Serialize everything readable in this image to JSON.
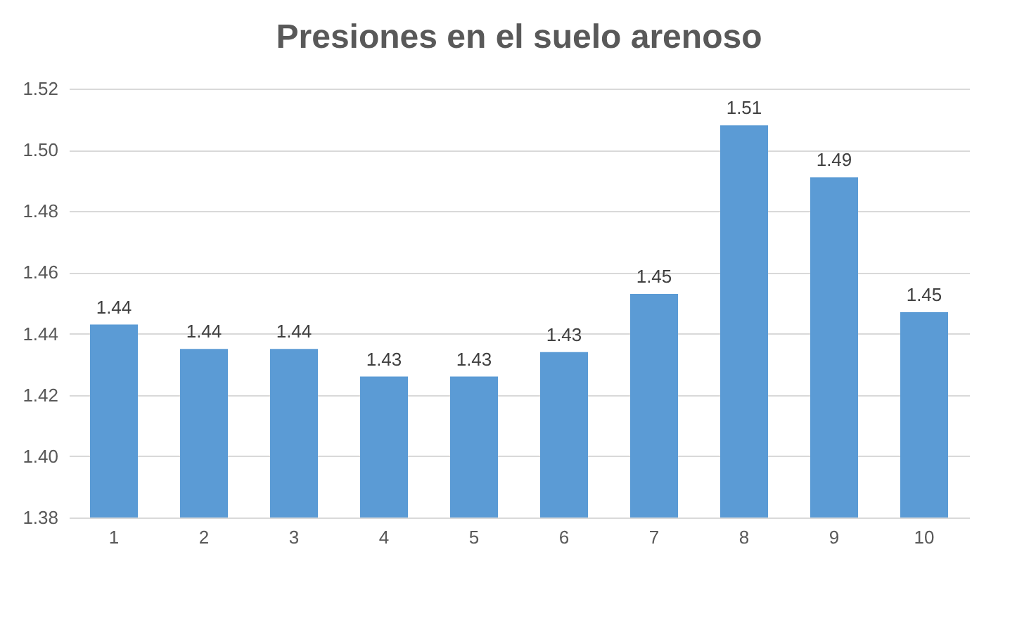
{
  "chart_data": {
    "type": "bar",
    "title": "Presiones en el suelo arenoso",
    "categories": [
      "1",
      "2",
      "3",
      "4",
      "5",
      "6",
      "7",
      "8",
      "9",
      "10"
    ],
    "values": [
      1.443,
      1.435,
      1.435,
      1.426,
      1.426,
      1.434,
      1.453,
      1.508,
      1.491,
      1.447
    ],
    "value_labels": [
      "1.44",
      "1.44",
      "1.44",
      "1.43",
      "1.43",
      "1.43",
      "1.45",
      "1.51",
      "1.49",
      "1.45"
    ],
    "color": "#5b9bd5",
    "ylim": [
      1.38,
      1.52
    ],
    "yticks": [
      {
        "value": 1.38,
        "label": "1.38"
      },
      {
        "value": 1.4,
        "label": "1.40"
      },
      {
        "value": 1.42,
        "label": "1.42"
      },
      {
        "value": 1.44,
        "label": "1.44"
      },
      {
        "value": 1.46,
        "label": "1.46"
      },
      {
        "value": 1.48,
        "label": "1.48"
      },
      {
        "value": 1.5,
        "label": "1.50"
      },
      {
        "value": 1.52,
        "label": "1.52"
      }
    ],
    "grid": "y"
  }
}
